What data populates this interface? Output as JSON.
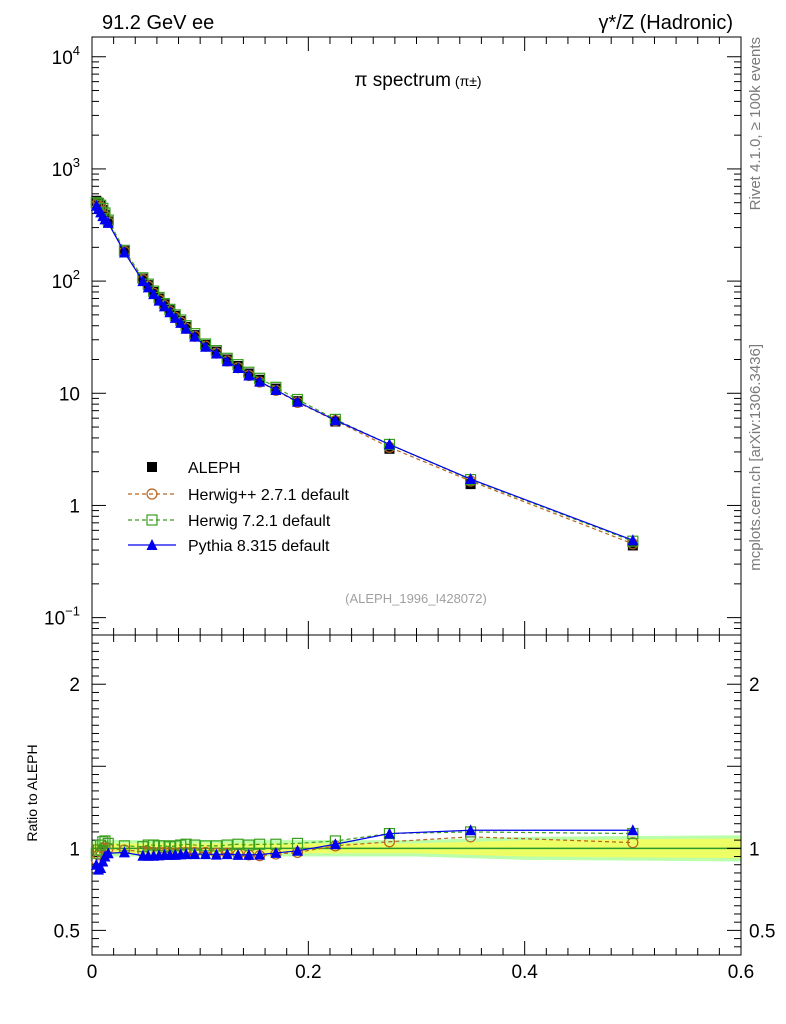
{
  "header": {
    "left": "91.2 GeV ee",
    "right": "γ*/Z (Hadronic)"
  },
  "side_labels": {
    "rivet": "Rivet 4.1.0, ≥ 100k events",
    "mcplots": "mcplots.cern.ch [arXiv:1306.3436]"
  },
  "colors": {
    "aleph": "#000000",
    "herwigpp": "#b8641e",
    "herwig7": "#3a9e1e",
    "pythia": "#0000ee",
    "band_inner": "#eeff66",
    "band_outer": "#bbffaa",
    "ratio_line": "#2a9a2a"
  },
  "chart_data": [
    {
      "type": "line",
      "title": "π spectrum",
      "title_sup": "(π±)",
      "reference": "(ALEPH_1996_I428072)",
      "xlabel": "",
      "ylabel": "",
      "xlim": [
        0,
        0.6
      ],
      "ylim": [
        0.07,
        15000
      ],
      "yscale": "log",
      "ytick_labels": [
        {
          "v": 0.1,
          "base": "10",
          "exp": "−1"
        },
        {
          "v": 1,
          "base": "1",
          "exp": ""
        },
        {
          "v": 10,
          "base": "10",
          "exp": ""
        },
        {
          "v": 100,
          "base": "10",
          "exp": "2"
        },
        {
          "v": 1000,
          "base": "10",
          "exp": "3"
        },
        {
          "v": 10000,
          "base": "10",
          "exp": "4"
        }
      ],
      "x": [
        0.004,
        0.006,
        0.008,
        0.01,
        0.012,
        0.015,
        0.03,
        0.047,
        0.052,
        0.057,
        0.062,
        0.067,
        0.072,
        0.077,
        0.082,
        0.087,
        0.095,
        0.105,
        0.115,
        0.125,
        0.135,
        0.145,
        0.155,
        0.17,
        0.19,
        0.225,
        0.275,
        0.35,
        0.5
      ],
      "series": [
        {
          "name": "ALEPH",
          "style": "square",
          "values": [
            520,
            500,
            470,
            430,
            390,
            340,
            185,
            105,
            92,
            80,
            70,
            62,
            55,
            49,
            44,
            39,
            33,
            27,
            23.5,
            20,
            17.5,
            15,
            13.2,
            11,
            8.5,
            5.6,
            3.2,
            1.55,
            0.44
          ]
        },
        {
          "name": "Herwig++ 2.7.1 default",
          "style": "circle",
          "values": [
            480,
            470,
            455,
            420,
            380,
            335,
            183,
            103,
            90,
            78,
            68,
            60.5,
            53.5,
            47.5,
            43,
            38,
            32.2,
            26.3,
            22.8,
            19.4,
            16.9,
            14.4,
            12.6,
            10.6,
            8.3,
            5.7,
            3.3,
            1.65,
            0.455
          ]
        },
        {
          "name": "Herwig 7.2.1 default",
          "style": "square-open",
          "values": [
            500,
            490,
            475,
            445,
            405,
            350,
            188,
            107,
            94,
            81.5,
            71.5,
            63,
            56,
            50,
            45,
            40,
            34,
            27.5,
            24,
            20.5,
            18,
            15.4,
            13.6,
            11.3,
            8.8,
            5.85,
            3.5,
            1.7,
            0.48
          ]
        },
        {
          "name": "Pythia 8.315 default",
          "style": "triangle",
          "values": [
            470,
            440,
            410,
            380,
            355,
            330,
            180,
            100,
            88,
            76.5,
            67,
            59.5,
            52.8,
            47,
            42.4,
            37.6,
            32,
            26,
            22.6,
            19.3,
            16.8,
            14.4,
            12.7,
            10.7,
            8.4,
            5.75,
            3.5,
            1.72,
            0.49
          ]
        }
      ]
    },
    {
      "type": "line",
      "title": "",
      "xlabel": "",
      "ylabel": "Ratio to ALEPH",
      "xlim": [
        0,
        0.6
      ],
      "ylim": [
        0.35,
        2.3
      ],
      "xticks": [
        0,
        0.2,
        0.4,
        0.6
      ],
      "xtick_labels": [
        "0",
        "0.2",
        "0.4",
        "0.6"
      ],
      "yticks": [
        0.5,
        1,
        2
      ],
      "ytick_labels": [
        "0.5",
        "1",
        "2"
      ],
      "reference_value": 1,
      "band": {
        "x": [
          0,
          0.3,
          0.4,
          0.6
        ],
        "inner": [
          0.03,
          0.03,
          0.05,
          0.06
        ],
        "outer": [
          0.05,
          0.05,
          0.07,
          0.08
        ]
      },
      "x": [
        0.004,
        0.006,
        0.008,
        0.01,
        0.012,
        0.015,
        0.03,
        0.047,
        0.052,
        0.057,
        0.062,
        0.067,
        0.072,
        0.077,
        0.082,
        0.087,
        0.095,
        0.105,
        0.115,
        0.125,
        0.135,
        0.145,
        0.155,
        0.17,
        0.19,
        0.225,
        0.275,
        0.35,
        0.5
      ],
      "series": [
        {
          "name": "Herwig++ 2.7.1 default",
          "style": "circle",
          "values": [
            0.93,
            0.96,
            0.98,
            1.0,
            1.01,
            1.0,
            0.99,
            0.98,
            0.98,
            0.975,
            0.975,
            0.975,
            0.975,
            0.97,
            0.975,
            0.975,
            0.975,
            0.975,
            0.97,
            0.97,
            0.965,
            0.96,
            0.955,
            0.965,
            0.975,
            1.015,
            1.04,
            1.07,
            1.035
          ]
        },
        {
          "name": "Herwig 7.2.1 default",
          "style": "square-open",
          "values": [
            0.97,
            0.99,
            1.02,
            1.04,
            1.045,
            1.03,
            1.015,
            1.01,
            1.02,
            1.02,
            1.015,
            1.015,
            1.01,
            1.015,
            1.02,
            1.025,
            1.02,
            1.015,
            1.015,
            1.02,
            1.025,
            1.02,
            1.025,
            1.025,
            1.03,
            1.045,
            1.09,
            1.1,
            1.09
          ]
        },
        {
          "name": "Pythia 8.315 default",
          "style": "triangle",
          "values": [
            0.9,
            0.87,
            0.88,
            0.92,
            0.95,
            0.97,
            0.975,
            0.955,
            0.955,
            0.955,
            0.957,
            0.96,
            0.96,
            0.96,
            0.963,
            0.965,
            0.965,
            0.965,
            0.962,
            0.965,
            0.96,
            0.96,
            0.962,
            0.972,
            0.985,
            1.025,
            1.09,
            1.11,
            1.11
          ]
        }
      ]
    }
  ]
}
